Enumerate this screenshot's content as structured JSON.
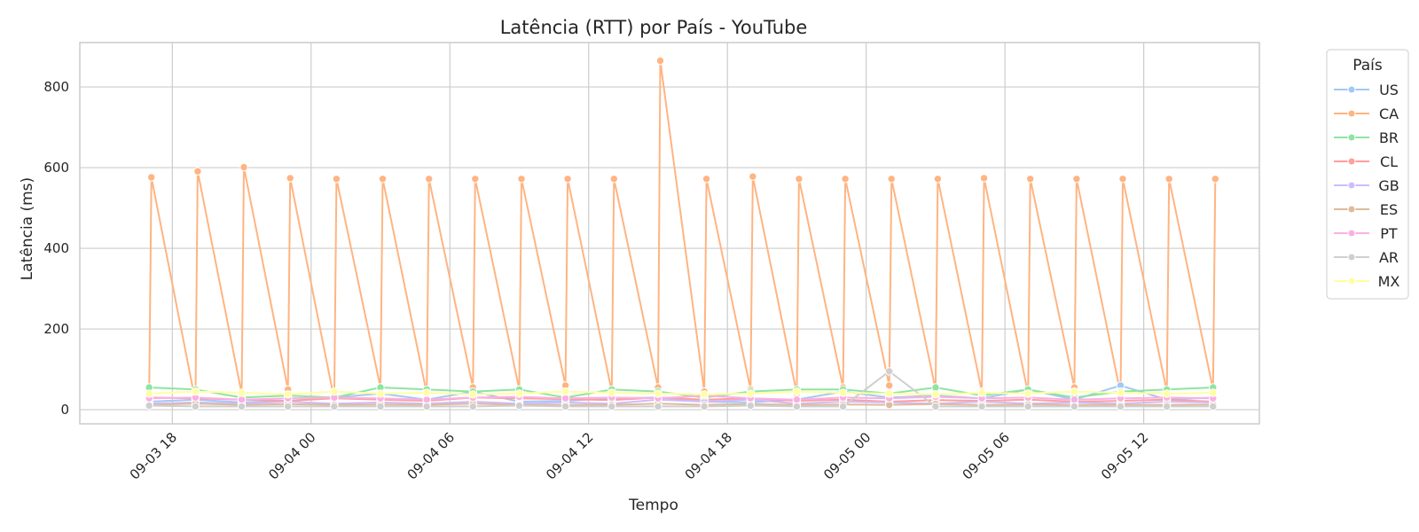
{
  "chart_data": {
    "type": "line",
    "title": "Latência (RTT) por País - YouTube",
    "xlabel": "Tempo",
    "ylabel": "Latência (ms)",
    "x_ticks": [
      "09-03 18",
      "09-04 00",
      "09-04 06",
      "09-04 12",
      "09-04 18",
      "09-05 00",
      "09-05 06",
      "09-05 12"
    ],
    "y_ticks": [
      "0",
      "200",
      "400",
      "600",
      "800"
    ],
    "ylim": [
      -35,
      910
    ],
    "grid": true,
    "legend": {
      "title": "País",
      "placement": "outside-right"
    },
    "x": [
      "09-03 17:00",
      "09-03 19:00",
      "09-03 21:00",
      "09-03 23:00",
      "09-04 01:00",
      "09-04 03:00",
      "09-04 05:00",
      "09-04 07:00",
      "09-04 09:00",
      "09-04 11:00",
      "09-04 13:00",
      "09-04 15:00",
      "09-04 17:00",
      "09-04 19:00",
      "09-04 21:00",
      "09-04 23:00",
      "09-05 01:00",
      "09-05 03:00",
      "09-05 05:00",
      "09-05 07:00",
      "09-05 09:00",
      "09-05 11:00",
      "09-05 13:00",
      "09-05 15:00"
    ],
    "series": [
      {
        "name": "US",
        "color": "#a1c9f4",
        "values": [
          20,
          25,
          18,
          22,
          30,
          40,
          25,
          45,
          20,
          22,
          28,
          30,
          20,
          18,
          25,
          45,
          30,
          35,
          28,
          50,
          25,
          60,
          25,
          30
        ]
      },
      {
        "name": "CA",
        "values": [
          35,
          20,
          40,
          50,
          25,
          55,
          40,
          55,
          50,
          60,
          45,
          55,
          45,
          50,
          40,
          55,
          60,
          50,
          45,
          40,
          55,
          40,
          45,
          50
        ],
        "spikes": [
          576,
          591,
          601,
          574,
          572,
          572,
          572,
          572,
          572,
          572,
          572,
          865,
          572,
          578,
          572,
          572,
          572,
          572,
          574,
          572,
          572,
          572,
          572,
          572
        ],
        "color": "#ffb482"
      },
      {
        "name": "BR",
        "color": "#8de5a1",
        "values": [
          55,
          50,
          30,
          35,
          30,
          55,
          50,
          45,
          50,
          30,
          50,
          45,
          30,
          45,
          50,
          50,
          40,
          55,
          35,
          50,
          30,
          45,
          50,
          55
        ]
      },
      {
        "name": "CL",
        "color": "#ff9f9b",
        "values": [
          30,
          28,
          25,
          22,
          28,
          25,
          22,
          30,
          28,
          26,
          24,
          30,
          25,
          28,
          22,
          25,
          20,
          24,
          22,
          25,
          20,
          22,
          25,
          20
        ]
      },
      {
        "name": "GB",
        "color": "#d0bbff",
        "values": [
          15,
          18,
          15,
          20,
          15,
          18,
          15,
          20,
          15,
          18,
          15,
          25,
          20,
          25,
          15,
          20,
          18,
          15,
          20,
          15,
          18,
          15,
          20,
          18
        ]
      },
      {
        "name": "ES",
        "color": "#debb9b",
        "values": [
          12,
          15,
          12,
          14,
          12,
          13,
          12,
          15,
          12,
          12,
          12,
          15,
          12,
          14,
          12,
          13,
          12,
          14,
          12,
          13,
          12,
          12,
          12,
          13
        ]
      },
      {
        "name": "PT",
        "color": "#fab0e4",
        "values": [
          28,
          30,
          25,
          28,
          30,
          28,
          25,
          30,
          32,
          28,
          30,
          28,
          35,
          28,
          25,
          30,
          28,
          32,
          28,
          30,
          25,
          28,
          30,
          28
        ]
      },
      {
        "name": "AR",
        "color": "#cfcfcf",
        "values": [
          10,
          8,
          8,
          8,
          8,
          8,
          8,
          8,
          10,
          8,
          8,
          8,
          8,
          10,
          8,
          8,
          95,
          8,
          8,
          8,
          8,
          8,
          8,
          8
        ]
      },
      {
        "name": "MX",
        "color": "#fffea3",
        "values": [
          40,
          45,
          42,
          38,
          45,
          40,
          42,
          38,
          40,
          45,
          42,
          40,
          38,
          40,
          45,
          42,
          40,
          38,
          42,
          40,
          45,
          42,
          40,
          42
        ]
      }
    ]
  }
}
